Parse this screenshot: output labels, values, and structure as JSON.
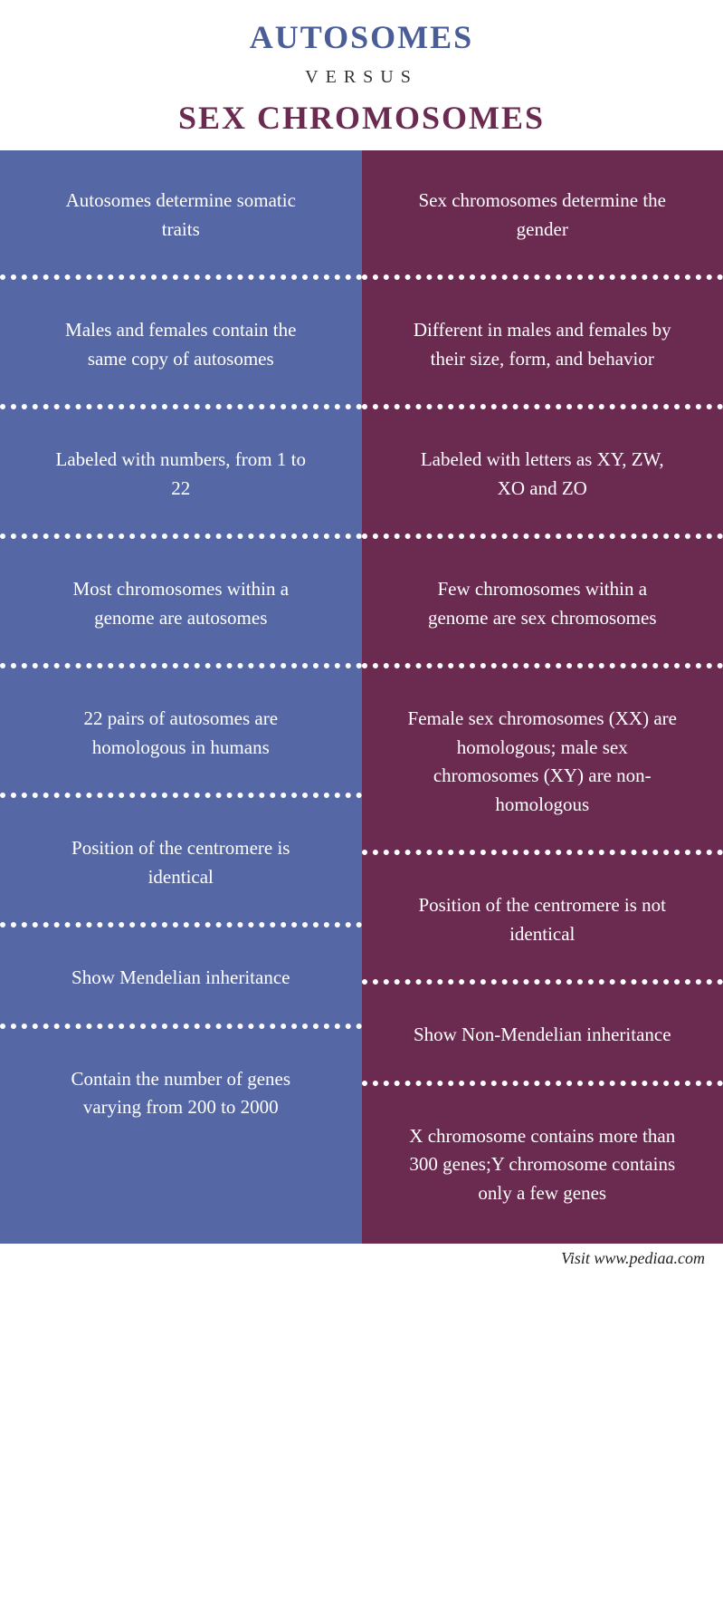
{
  "header": {
    "title_top": "AUTOSOMES",
    "versus": "VERSUS",
    "title_bottom": "SEX CHROMOSOMES"
  },
  "colors": {
    "left_column_bg": "#5567a5",
    "right_column_bg": "#6b2a50",
    "title_top_color": "#4a5d96",
    "title_bottom_color": "#6b2a50",
    "divider_color": "#ffffff",
    "cell_text_color": "#ffffff"
  },
  "rows": [
    {
      "left": "Autosomes determine somatic traits",
      "right": "Sex chromosomes determine the gender"
    },
    {
      "left": "Males and females contain the same copy of autosomes",
      "right": "Different in males and females by their size, form, and behavior"
    },
    {
      "left": "Labeled with numbers, from 1 to 22",
      "right": "Labeled with letters as XY, ZW, XO and ZO"
    },
    {
      "left": "Most chromosomes within a genome are autosomes",
      "right": "Few chromosomes within a genome are sex chromosomes"
    },
    {
      "left": "22 pairs of autosomes are homologous in humans",
      "right": "Female sex chromosomes (XX) are homologous; male sex chromosomes (XY) are non-homologous"
    },
    {
      "left": "Position of the centromere is identical",
      "right": "Position of the centromere is not identical"
    },
    {
      "left": "Show Mendelian inheritance",
      "right": "Show Non-Mendelian inheritance"
    },
    {
      "left": "Contain the number of genes varying from 200 to 2000",
      "right": "X chromosome contains more than 300 genes;Y chromosome contains only a few genes"
    }
  ],
  "footer": "Visit www.pediaa.com"
}
